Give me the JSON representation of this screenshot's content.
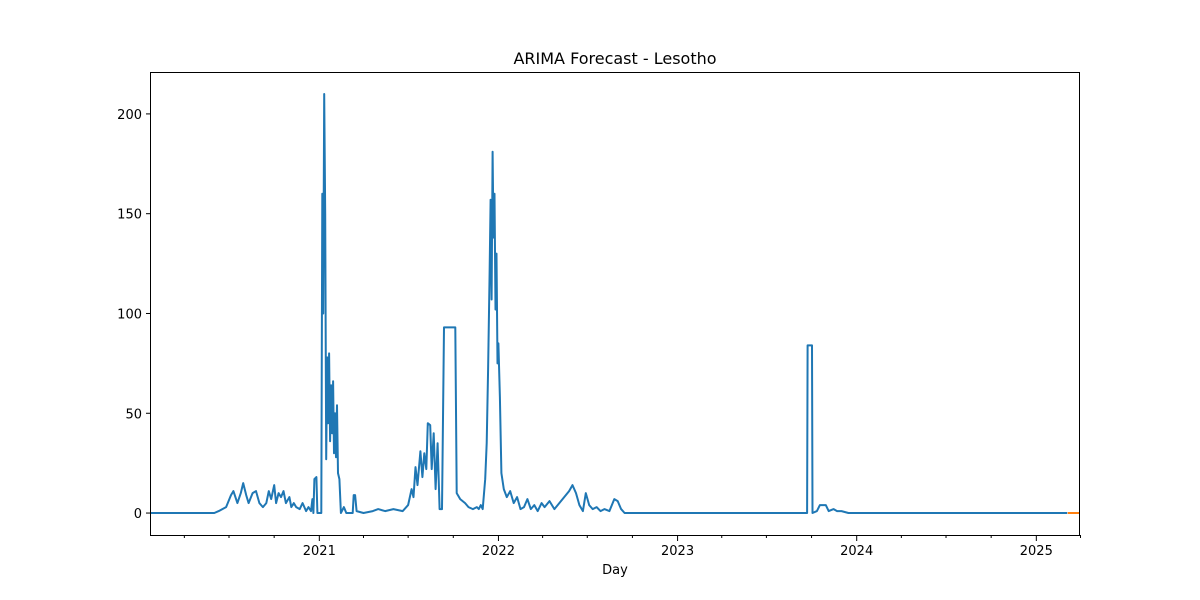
{
  "chart_data": {
    "type": "line",
    "title": "ARIMA Forecast - Lesotho",
    "xlabel": "Day",
    "ylabel": "",
    "x_range": [
      "2020-01-22",
      "2025-03-31"
    ],
    "ylim": [
      -11,
      221
    ],
    "y_ticks": [
      0,
      50,
      100,
      150,
      200
    ],
    "x_ticks": [
      {
        "date": "2021-01-01",
        "label": "2021"
      },
      {
        "date": "2022-01-01",
        "label": "2022"
      },
      {
        "date": "2023-01-01",
        "label": "2023"
      },
      {
        "date": "2024-01-01",
        "label": "2024"
      },
      {
        "date": "2025-01-01",
        "label": "2025"
      }
    ],
    "x_minor_ticks": [
      "2020-04-01",
      "2020-07-01",
      "2020-10-01",
      "2021-04-01",
      "2021-07-01",
      "2021-10-01",
      "2022-04-01",
      "2022-07-01",
      "2022-10-01",
      "2023-04-01",
      "2023-07-01",
      "2023-10-01",
      "2024-04-01",
      "2024-07-01",
      "2024-10-01",
      "2025-04-01"
    ],
    "grid": false,
    "legend": "none",
    "series": [
      {
        "color": "#1f77b4",
        "points": [
          [
            "2020-01-22",
            0
          ],
          [
            "2020-06-01",
            0
          ],
          [
            "2020-06-10",
            1
          ],
          [
            "2020-06-25",
            3
          ],
          [
            "2020-07-05",
            9
          ],
          [
            "2020-07-10",
            11
          ],
          [
            "2020-07-18",
            5
          ],
          [
            "2020-07-25",
            10
          ],
          [
            "2020-07-30",
            15
          ],
          [
            "2020-08-05",
            9
          ],
          [
            "2020-08-10",
            5
          ],
          [
            "2020-08-18",
            10
          ],
          [
            "2020-08-25",
            11
          ],
          [
            "2020-09-01",
            5
          ],
          [
            "2020-09-08",
            3
          ],
          [
            "2020-09-15",
            5
          ],
          [
            "2020-09-20",
            11
          ],
          [
            "2020-09-25",
            7
          ],
          [
            "2020-10-01",
            14
          ],
          [
            "2020-10-05",
            5
          ],
          [
            "2020-10-10",
            10
          ],
          [
            "2020-10-15",
            8
          ],
          [
            "2020-10-20",
            11
          ],
          [
            "2020-10-25",
            5
          ],
          [
            "2020-11-01",
            8
          ],
          [
            "2020-11-05",
            3
          ],
          [
            "2020-11-10",
            5
          ],
          [
            "2020-11-15",
            3
          ],
          [
            "2020-11-22",
            2
          ],
          [
            "2020-11-28",
            5
          ],
          [
            "2020-12-05",
            1
          ],
          [
            "2020-12-10",
            3
          ],
          [
            "2020-12-15",
            1
          ],
          [
            "2020-12-18",
            7
          ],
          [
            "2020-12-20",
            0
          ],
          [
            "2020-12-22",
            17
          ],
          [
            "2020-12-26",
            18
          ],
          [
            "2020-12-28",
            0
          ],
          [
            "2021-01-05",
            0
          ],
          [
            "2021-01-07",
            160
          ],
          [
            "2021-01-09",
            100
          ],
          [
            "2021-01-11",
            210
          ],
          [
            "2021-01-13",
            150
          ],
          [
            "2021-01-15",
            27
          ],
          [
            "2021-01-17",
            78
          ],
          [
            "2021-01-19",
            45
          ],
          [
            "2021-01-21",
            80
          ],
          [
            "2021-01-23",
            36
          ],
          [
            "2021-01-25",
            64
          ],
          [
            "2021-01-27",
            40
          ],
          [
            "2021-01-29",
            66
          ],
          [
            "2021-01-31",
            30
          ],
          [
            "2021-02-02",
            50
          ],
          [
            "2021-02-04",
            28
          ],
          [
            "2021-02-06",
            54
          ],
          [
            "2021-02-08",
            20
          ],
          [
            "2021-02-11",
            17
          ],
          [
            "2021-02-14",
            0
          ],
          [
            "2021-02-20",
            3
          ],
          [
            "2021-02-25",
            0
          ],
          [
            "2021-03-10",
            0
          ],
          [
            "2021-03-12",
            9
          ],
          [
            "2021-03-15",
            9
          ],
          [
            "2021-03-18",
            1
          ],
          [
            "2021-04-01",
            0
          ],
          [
            "2021-04-20",
            1
          ],
          [
            "2021-05-01",
            2
          ],
          [
            "2021-05-15",
            1
          ],
          [
            "2021-06-01",
            2
          ],
          [
            "2021-06-20",
            1
          ],
          [
            "2021-07-01",
            4
          ],
          [
            "2021-07-08",
            12
          ],
          [
            "2021-07-12",
            8
          ],
          [
            "2021-07-16",
            23
          ],
          [
            "2021-07-20",
            14
          ],
          [
            "2021-07-26",
            31
          ],
          [
            "2021-07-30",
            18
          ],
          [
            "2021-08-03",
            30
          ],
          [
            "2021-08-07",
            22
          ],
          [
            "2021-08-10",
            45
          ],
          [
            "2021-08-15",
            44
          ],
          [
            "2021-08-18",
            22
          ],
          [
            "2021-08-22",
            40
          ],
          [
            "2021-08-26",
            12
          ],
          [
            "2021-08-30",
            35
          ],
          [
            "2021-09-03",
            2
          ],
          [
            "2021-09-08",
            2
          ],
          [
            "2021-09-12",
            93
          ],
          [
            "2021-10-05",
            93
          ],
          [
            "2021-10-08",
            10
          ],
          [
            "2021-10-15",
            7
          ],
          [
            "2021-10-25",
            5
          ],
          [
            "2021-11-01",
            3
          ],
          [
            "2021-11-10",
            2
          ],
          [
            "2021-11-18",
            3
          ],
          [
            "2021-11-22",
            2
          ],
          [
            "2021-11-26",
            4
          ],
          [
            "2021-11-30",
            2
          ],
          [
            "2021-12-05",
            17
          ],
          [
            "2021-12-08",
            35
          ],
          [
            "2021-12-11",
            72
          ],
          [
            "2021-12-14",
            120
          ],
          [
            "2021-12-16",
            157
          ],
          [
            "2021-12-18",
            107
          ],
          [
            "2021-12-20",
            181
          ],
          [
            "2021-12-22",
            138
          ],
          [
            "2021-12-24",
            160
          ],
          [
            "2021-12-26",
            102
          ],
          [
            "2021-12-28",
            130
          ],
          [
            "2021-12-30",
            75
          ],
          [
            "2022-01-01",
            85
          ],
          [
            "2022-01-04",
            58
          ],
          [
            "2022-01-07",
            20
          ],
          [
            "2022-01-12",
            12
          ],
          [
            "2022-01-18",
            8
          ],
          [
            "2022-01-25",
            11
          ],
          [
            "2022-02-01",
            5
          ],
          [
            "2022-02-08",
            8
          ],
          [
            "2022-02-15",
            2
          ],
          [
            "2022-02-22",
            3
          ],
          [
            "2022-03-01",
            7
          ],
          [
            "2022-03-08",
            2
          ],
          [
            "2022-03-15",
            4
          ],
          [
            "2022-03-22",
            1
          ],
          [
            "2022-03-30",
            5
          ],
          [
            "2022-04-05",
            3
          ],
          [
            "2022-04-15",
            6
          ],
          [
            "2022-04-25",
            2
          ],
          [
            "2022-05-05",
            5
          ],
          [
            "2022-05-15",
            8
          ],
          [
            "2022-05-25",
            11
          ],
          [
            "2022-06-01",
            14
          ],
          [
            "2022-06-08",
            10
          ],
          [
            "2022-06-15",
            4
          ],
          [
            "2022-06-22",
            1
          ],
          [
            "2022-06-28",
            10
          ],
          [
            "2022-07-05",
            4
          ],
          [
            "2022-07-12",
            2
          ],
          [
            "2022-07-20",
            3
          ],
          [
            "2022-07-28",
            1
          ],
          [
            "2022-08-05",
            2
          ],
          [
            "2022-08-15",
            1
          ],
          [
            "2022-08-25",
            7
          ],
          [
            "2022-09-01",
            6
          ],
          [
            "2022-09-08",
            2
          ],
          [
            "2022-09-15",
            0
          ],
          [
            "2023-09-22",
            0
          ],
          [
            "2023-09-23",
            84
          ],
          [
            "2023-10-02",
            84
          ],
          [
            "2023-10-03",
            0
          ],
          [
            "2023-10-12",
            1
          ],
          [
            "2023-10-18",
            4
          ],
          [
            "2023-10-30",
            4
          ],
          [
            "2023-11-05",
            1
          ],
          [
            "2023-11-15",
            2
          ],
          [
            "2023-11-22",
            1
          ],
          [
            "2023-12-01",
            1
          ],
          [
            "2023-12-15",
            0
          ],
          [
            "2025-03-05",
            0
          ]
        ]
      },
      {
        "color": "#ff7f0e",
        "points": [
          [
            "2025-03-06",
            0
          ],
          [
            "2025-03-31",
            0
          ]
        ]
      }
    ]
  }
}
